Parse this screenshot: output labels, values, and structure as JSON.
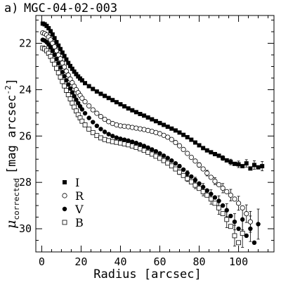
{
  "panel_label": "a)",
  "chart_data": {
    "type": "scatter",
    "title": "MGC-04-02-003",
    "xlabel": "Radius [arcsec]",
    "ylabel_symbol": "μ",
    "ylabel_subscript": "corrected",
    "ylabel_units": "[mag arcsec",
    "ylabel_units_exponent": "-2",
    "ylabel_units_close": "]",
    "xlim": [
      -3,
      118
    ],
    "ylim": [
      31,
      20.8
    ],
    "y_inverted": true,
    "x_ticks": [
      0,
      20,
      40,
      60,
      80,
      100
    ],
    "y_ticks": [
      22,
      24,
      26,
      28,
      30
    ],
    "x_tick_labels": [
      "0",
      "20",
      "40",
      "60",
      "80",
      "100"
    ],
    "y_tick_labels": [
      "22",
      "24",
      "26",
      "28",
      "30"
    ],
    "grid": false,
    "legend_position": "lower-left",
    "series": [
      {
        "name": "I",
        "marker": "filled-square",
        "color": "#000000",
        "points": [
          [
            0.5,
            21.15
          ],
          [
            1.5,
            21.18
          ],
          [
            2.5,
            21.25
          ],
          [
            3.5,
            21.35
          ],
          [
            4.5,
            21.48
          ],
          [
            5.5,
            21.62
          ],
          [
            6.5,
            21.78
          ],
          [
            7.5,
            21.95
          ],
          [
            8.5,
            22.1
          ],
          [
            9.5,
            22.25
          ],
          [
            10.5,
            22.4
          ],
          [
            11.5,
            22.55
          ],
          [
            12.5,
            22.7
          ],
          [
            13.5,
            22.85
          ],
          [
            14.5,
            22.98
          ],
          [
            15.5,
            23.1
          ],
          [
            16.5,
            23.22
          ],
          [
            17.5,
            23.33
          ],
          [
            18.5,
            23.43
          ],
          [
            19.5,
            23.52
          ],
          [
            20.5,
            23.6
          ],
          [
            22,
            23.72
          ],
          [
            24,
            23.85
          ],
          [
            26,
            23.97
          ],
          [
            28,
            24.08
          ],
          [
            30,
            24.18
          ],
          [
            32,
            24.27
          ],
          [
            34,
            24.36
          ],
          [
            36,
            24.45
          ],
          [
            38,
            24.54
          ],
          [
            40,
            24.63
          ],
          [
            42,
            24.72
          ],
          [
            44,
            24.81
          ],
          [
            46,
            24.89
          ],
          [
            48,
            24.97
          ],
          [
            50,
            25.05
          ],
          [
            52,
            25.12
          ],
          [
            54,
            25.2
          ],
          [
            56,
            25.28
          ],
          [
            58,
            25.36
          ],
          [
            60,
            25.44
          ],
          [
            62,
            25.52
          ],
          [
            64,
            25.6
          ],
          [
            66,
            25.68
          ],
          [
            68,
            25.76
          ],
          [
            70,
            25.85
          ],
          [
            72,
            25.95
          ],
          [
            74,
            26.05
          ],
          [
            76,
            26.16
          ],
          [
            78,
            26.28
          ],
          [
            80,
            26.4
          ],
          [
            82,
            26.52
          ],
          [
            84,
            26.62
          ],
          [
            86,
            26.7
          ],
          [
            88,
            26.78
          ],
          [
            90,
            26.85
          ],
          [
            92,
            26.95
          ],
          [
            94,
            27.05
          ],
          [
            96,
            27.12
          ],
          [
            98,
            27.2
          ],
          [
            100,
            27.22
          ],
          [
            102,
            27.3
          ],
          [
            104,
            27.18
          ],
          [
            106,
            27.4
          ],
          [
            108,
            27.25
          ],
          [
            110,
            27.35
          ],
          [
            112,
            27.3
          ]
        ],
        "errors": [
          [
            80,
            0.06
          ],
          [
            84,
            0.07
          ],
          [
            88,
            0.08
          ],
          [
            92,
            0.1
          ],
          [
            96,
            0.12
          ],
          [
            100,
            0.14
          ],
          [
            104,
            0.16
          ],
          [
            108,
            0.18
          ],
          [
            112,
            0.2
          ]
        ]
      },
      {
        "name": "R",
        "marker": "open-circle",
        "color": "#000000",
        "points": [
          [
            0.5,
            21.55
          ],
          [
            1.5,
            21.58
          ],
          [
            2.5,
            21.64
          ],
          [
            3.5,
            21.73
          ],
          [
            4.5,
            21.85
          ],
          [
            5.5,
            22.0
          ],
          [
            6.5,
            22.15
          ],
          [
            7.5,
            22.32
          ],
          [
            8.5,
            22.5
          ],
          [
            9.5,
            22.67
          ],
          [
            10.5,
            22.85
          ],
          [
            11.5,
            23.02
          ],
          [
            12.5,
            23.2
          ],
          [
            13.5,
            23.37
          ],
          [
            14.5,
            23.54
          ],
          [
            15.5,
            23.7
          ],
          [
            16.5,
            23.85
          ],
          [
            17.5,
            24.0
          ],
          [
            18.5,
            24.13
          ],
          [
            19.5,
            24.25
          ],
          [
            20.5,
            24.37
          ],
          [
            22,
            24.52
          ],
          [
            24,
            24.7
          ],
          [
            26,
            24.87
          ],
          [
            28,
            25.02
          ],
          [
            30,
            25.16
          ],
          [
            32,
            25.28
          ],
          [
            34,
            25.38
          ],
          [
            36,
            25.46
          ],
          [
            38,
            25.52
          ],
          [
            40,
            25.56
          ],
          [
            42,
            25.58
          ],
          [
            44,
            25.6
          ],
          [
            46,
            25.63
          ],
          [
            48,
            25.66
          ],
          [
            50,
            25.69
          ],
          [
            52,
            25.72
          ],
          [
            54,
            25.76
          ],
          [
            56,
            25.8
          ],
          [
            58,
            25.85
          ],
          [
            60,
            25.9
          ],
          [
            62,
            25.97
          ],
          [
            64,
            26.05
          ],
          [
            66,
            26.15
          ],
          [
            68,
            26.28
          ],
          [
            70,
            26.42
          ],
          [
            72,
            26.58
          ],
          [
            74,
            26.75
          ],
          [
            76,
            26.92
          ],
          [
            78,
            27.08
          ],
          [
            80,
            27.25
          ],
          [
            82,
            27.42
          ],
          [
            84,
            27.6
          ],
          [
            86,
            27.78
          ],
          [
            88,
            27.95
          ],
          [
            90,
            28.1
          ],
          [
            92,
            28.25
          ],
          [
            94,
            28.4
          ],
          [
            96,
            28.55
          ],
          [
            98,
            28.72
          ],
          [
            100,
            28.9
          ],
          [
            102,
            29.1
          ],
          [
            104,
            29.35
          ],
          [
            106,
            29.7
          ]
        ],
        "errors": [
          [
            76,
            0.08
          ],
          [
            80,
            0.1
          ],
          [
            84,
            0.12
          ],
          [
            88,
            0.15
          ],
          [
            92,
            0.2
          ],
          [
            96,
            0.25
          ],
          [
            100,
            0.3
          ],
          [
            104,
            0.38
          ],
          [
            106,
            0.45
          ]
        ]
      },
      {
        "name": "V",
        "marker": "filled-circle",
        "color": "#000000",
        "points": [
          [
            0.5,
            21.85
          ],
          [
            1.5,
            21.88
          ],
          [
            2.5,
            21.95
          ],
          [
            3.5,
            22.05
          ],
          [
            4.5,
            22.18
          ],
          [
            5.5,
            22.33
          ],
          [
            6.5,
            22.5
          ],
          [
            7.5,
            22.68
          ],
          [
            8.5,
            22.86
          ],
          [
            9.5,
            23.05
          ],
          [
            10.5,
            23.24
          ],
          [
            11.5,
            23.42
          ],
          [
            12.5,
            23.6
          ],
          [
            13.5,
            23.78
          ],
          [
            14.5,
            23.95
          ],
          [
            15.5,
            24.12
          ],
          [
            16.5,
            24.28
          ],
          [
            17.5,
            24.43
          ],
          [
            18.5,
            24.58
          ],
          [
            19.5,
            24.72
          ],
          [
            20.5,
            24.85
          ],
          [
            22,
            25.02
          ],
          [
            24,
            25.22
          ],
          [
            26,
            25.4
          ],
          [
            28,
            25.56
          ],
          [
            30,
            25.7
          ],
          [
            32,
            25.82
          ],
          [
            34,
            25.92
          ],
          [
            36,
            26.0
          ],
          [
            38,
            26.07
          ],
          [
            40,
            26.12
          ],
          [
            42,
            26.16
          ],
          [
            44,
            26.2
          ],
          [
            46,
            26.25
          ],
          [
            48,
            26.3
          ],
          [
            50,
            26.36
          ],
          [
            52,
            26.43
          ],
          [
            54,
            26.5
          ],
          [
            56,
            26.58
          ],
          [
            58,
            26.66
          ],
          [
            60,
            26.75
          ],
          [
            62,
            26.85
          ],
          [
            64,
            26.95
          ],
          [
            66,
            27.06
          ],
          [
            68,
            27.18
          ],
          [
            70,
            27.3
          ],
          [
            72,
            27.45
          ],
          [
            74,
            27.6
          ],
          [
            76,
            27.75
          ],
          [
            78,
            27.9
          ],
          [
            80,
            28.05
          ],
          [
            82,
            28.2
          ],
          [
            84,
            28.35
          ],
          [
            86,
            28.5
          ],
          [
            88,
            28.65
          ],
          [
            90,
            28.8
          ],
          [
            92,
            29.0
          ],
          [
            94,
            29.2
          ],
          [
            96,
            29.45
          ],
          [
            98,
            29.7
          ],
          [
            100,
            30.0
          ],
          [
            102,
            29.6
          ],
          [
            104,
            30.3
          ],
          [
            106,
            30.0
          ],
          [
            108,
            30.6
          ],
          [
            110,
            29.8
          ]
        ],
        "errors": [
          [
            70,
            0.08
          ],
          [
            74,
            0.1
          ],
          [
            78,
            0.12
          ],
          [
            82,
            0.15
          ],
          [
            86,
            0.18
          ],
          [
            90,
            0.22
          ],
          [
            94,
            0.28
          ],
          [
            98,
            0.35
          ],
          [
            102,
            0.45
          ],
          [
            106,
            0.55
          ],
          [
            110,
            0.65
          ]
        ]
      },
      {
        "name": "B",
        "marker": "open-square",
        "color": "#000000",
        "points": [
          [
            0.5,
            22.2
          ],
          [
            1.5,
            22.24
          ],
          [
            2.5,
            22.32
          ],
          [
            3.5,
            22.43
          ],
          [
            4.5,
            22.57
          ],
          [
            5.5,
            22.73
          ],
          [
            6.5,
            22.9
          ],
          [
            7.5,
            23.08
          ],
          [
            8.5,
            23.27
          ],
          [
            9.5,
            23.46
          ],
          [
            10.5,
            23.65
          ],
          [
            11.5,
            23.84
          ],
          [
            12.5,
            24.03
          ],
          [
            13.5,
            24.22
          ],
          [
            14.5,
            24.4
          ],
          [
            15.5,
            24.58
          ],
          [
            16.5,
            24.75
          ],
          [
            17.5,
            24.92
          ],
          [
            18.5,
            25.08
          ],
          [
            19.5,
            25.22
          ],
          [
            20.5,
            25.36
          ],
          [
            22,
            25.52
          ],
          [
            24,
            25.7
          ],
          [
            26,
            25.85
          ],
          [
            28,
            25.98
          ],
          [
            30,
            26.08
          ],
          [
            32,
            26.15
          ],
          [
            34,
            26.2
          ],
          [
            36,
            26.24
          ],
          [
            38,
            26.27
          ],
          [
            40,
            26.3
          ],
          [
            42,
            26.34
          ],
          [
            44,
            26.38
          ],
          [
            46,
            26.43
          ],
          [
            48,
            26.49
          ],
          [
            50,
            26.55
          ],
          [
            52,
            26.62
          ],
          [
            54,
            26.7
          ],
          [
            56,
            26.78
          ],
          [
            58,
            26.87
          ],
          [
            60,
            26.96
          ],
          [
            62,
            27.06
          ],
          [
            64,
            27.17
          ],
          [
            66,
            27.29
          ],
          [
            68,
            27.42
          ],
          [
            70,
            27.56
          ],
          [
            72,
            27.7
          ],
          [
            74,
            27.84
          ],
          [
            76,
            27.98
          ],
          [
            78,
            28.12
          ],
          [
            80,
            28.26
          ],
          [
            82,
            28.4
          ],
          [
            84,
            28.55
          ],
          [
            86,
            28.72
          ],
          [
            88,
            28.9
          ],
          [
            90,
            29.1
          ],
          [
            92,
            29.35
          ],
          [
            94,
            29.6
          ],
          [
            96,
            29.9
          ],
          [
            98,
            30.3
          ],
          [
            100,
            30.6
          ],
          [
            102,
            30.2
          ]
        ],
        "errors": [
          [
            66,
            0.08
          ],
          [
            70,
            0.1
          ],
          [
            74,
            0.12
          ],
          [
            78,
            0.15
          ],
          [
            82,
            0.18
          ],
          [
            86,
            0.22
          ],
          [
            90,
            0.28
          ],
          [
            94,
            0.35
          ],
          [
            98,
            0.45
          ],
          [
            102,
            0.6
          ]
        ]
      }
    ]
  }
}
